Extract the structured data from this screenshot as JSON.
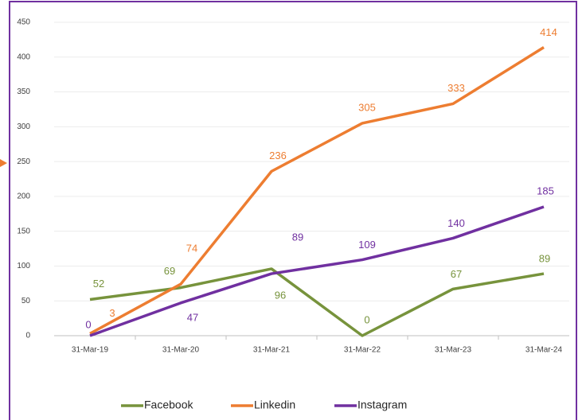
{
  "chart_data": {
    "type": "line",
    "categories": [
      "31-Mar-19",
      "31-Mar-20",
      "31-Mar-21",
      "31-Mar-22",
      "31-Mar-23",
      "31-Mar-24"
    ],
    "series": [
      {
        "name": "Facebook",
        "color": "#77933c",
        "values": [
          52,
          69,
          96,
          0,
          67,
          89
        ]
      },
      {
        "name": "Linkedin",
        "color": "#ed7d31",
        "values": [
          3,
          74,
          236,
          305,
          333,
          414
        ]
      },
      {
        "name": "Instagram",
        "color": "#7030a0",
        "values": [
          0,
          47,
          89,
          109,
          140,
          185
        ]
      }
    ],
    "ylim": [
      0,
      450
    ],
    "yticks": [
      0,
      50,
      100,
      150,
      200,
      250,
      300,
      350,
      400,
      450
    ],
    "grid": true,
    "legend": "bottom"
  }
}
